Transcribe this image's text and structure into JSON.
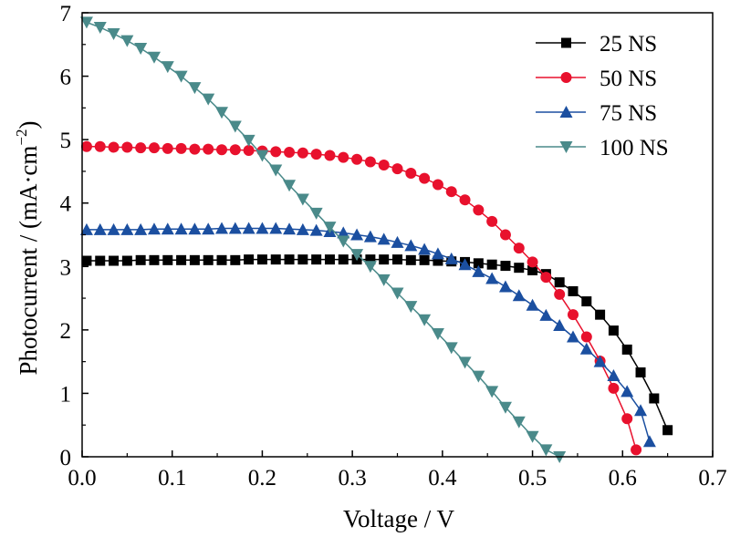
{
  "chart_data": {
    "type": "line",
    "xlabel": "Voltage / V",
    "ylabel_main": "Photocurrent / (mA·cm",
    "ylabel_sup": "−2",
    "ylabel_close": ")",
    "xlim": [
      0.0,
      0.7
    ],
    "ylim": [
      0,
      7
    ],
    "x_ticks": [
      0.0,
      0.1,
      0.2,
      0.3,
      0.4,
      0.5,
      0.6,
      0.7
    ],
    "x_tick_labels": [
      "0.0",
      "0.1",
      "0.2",
      "0.3",
      "0.4",
      "0.5",
      "0.6",
      "0.7"
    ],
    "y_ticks": [
      0,
      1,
      2,
      3,
      4,
      5,
      6,
      7
    ],
    "y_tick_labels": [
      "0",
      "1",
      "2",
      "3",
      "4",
      "5",
      "6",
      "7"
    ],
    "grid": false,
    "legend_position": "top-right",
    "series": [
      {
        "name": "25 NS",
        "color": "#000000",
        "marker": "square",
        "x": [
          0.005,
          0.02,
          0.035,
          0.05,
          0.065,
          0.08,
          0.095,
          0.11,
          0.125,
          0.14,
          0.155,
          0.17,
          0.185,
          0.2,
          0.215,
          0.23,
          0.245,
          0.26,
          0.275,
          0.29,
          0.305,
          0.32,
          0.335,
          0.35,
          0.365,
          0.38,
          0.395,
          0.41,
          0.425,
          0.44,
          0.455,
          0.47,
          0.485,
          0.5,
          0.515,
          0.53,
          0.545,
          0.56,
          0.575,
          0.59,
          0.605,
          0.62,
          0.635,
          0.65
        ],
        "y": [
          3.09,
          3.09,
          3.09,
          3.09,
          3.1,
          3.1,
          3.1,
          3.1,
          3.1,
          3.1,
          3.1,
          3.1,
          3.11,
          3.11,
          3.11,
          3.11,
          3.11,
          3.11,
          3.11,
          3.11,
          3.11,
          3.11,
          3.11,
          3.11,
          3.1,
          3.1,
          3.09,
          3.08,
          3.07,
          3.05,
          3.03,
          3.01,
          2.98,
          2.94,
          2.88,
          2.75,
          2.61,
          2.45,
          2.24,
          1.99,
          1.69,
          1.33,
          0.92,
          0.42
        ]
      },
      {
        "name": "50 NS",
        "color": "#e8112d",
        "marker": "circle",
        "x": [
          0.005,
          0.02,
          0.035,
          0.05,
          0.065,
          0.08,
          0.095,
          0.11,
          0.125,
          0.14,
          0.155,
          0.17,
          0.185,
          0.2,
          0.215,
          0.23,
          0.245,
          0.26,
          0.275,
          0.29,
          0.305,
          0.32,
          0.335,
          0.35,
          0.365,
          0.38,
          0.395,
          0.41,
          0.425,
          0.44,
          0.455,
          0.47,
          0.485,
          0.5,
          0.515,
          0.53,
          0.545,
          0.56,
          0.575,
          0.59,
          0.605,
          0.615
        ],
        "y": [
          4.89,
          4.89,
          4.88,
          4.88,
          4.87,
          4.87,
          4.86,
          4.86,
          4.85,
          4.85,
          4.84,
          4.84,
          4.83,
          4.82,
          4.81,
          4.8,
          4.79,
          4.77,
          4.75,
          4.72,
          4.69,
          4.65,
          4.6,
          4.54,
          4.47,
          4.39,
          4.29,
          4.18,
          4.05,
          3.89,
          3.71,
          3.5,
          3.29,
          3.07,
          2.83,
          2.56,
          2.24,
          1.89,
          1.51,
          1.08,
          0.6,
          0.11
        ]
      },
      {
        "name": "75 NS",
        "color": "#1b4fa0",
        "marker": "triangle-up",
        "x": [
          0.005,
          0.02,
          0.035,
          0.05,
          0.065,
          0.08,
          0.095,
          0.11,
          0.125,
          0.14,
          0.155,
          0.17,
          0.185,
          0.2,
          0.215,
          0.23,
          0.245,
          0.26,
          0.275,
          0.29,
          0.305,
          0.32,
          0.335,
          0.35,
          0.365,
          0.38,
          0.395,
          0.41,
          0.425,
          0.44,
          0.455,
          0.47,
          0.485,
          0.5,
          0.515,
          0.53,
          0.545,
          0.56,
          0.575,
          0.59,
          0.605,
          0.62,
          0.63
        ],
        "y": [
          3.58,
          3.58,
          3.58,
          3.58,
          3.58,
          3.59,
          3.59,
          3.59,
          3.59,
          3.59,
          3.6,
          3.6,
          3.6,
          3.6,
          3.6,
          3.59,
          3.58,
          3.57,
          3.55,
          3.53,
          3.5,
          3.47,
          3.43,
          3.38,
          3.33,
          3.27,
          3.2,
          3.12,
          3.03,
          2.92,
          2.81,
          2.68,
          2.54,
          2.39,
          2.23,
          2.07,
          1.89,
          1.7,
          1.5,
          1.28,
          1.03,
          0.73,
          0.24
        ]
      },
      {
        "name": "100 NS",
        "color": "#4a8a8a",
        "marker": "triangle-down",
        "x": [
          0.005,
          0.02,
          0.035,
          0.05,
          0.065,
          0.08,
          0.095,
          0.11,
          0.125,
          0.14,
          0.155,
          0.17,
          0.185,
          0.2,
          0.215,
          0.23,
          0.245,
          0.26,
          0.275,
          0.29,
          0.305,
          0.32,
          0.335,
          0.35,
          0.365,
          0.38,
          0.395,
          0.41,
          0.425,
          0.44,
          0.455,
          0.47,
          0.485,
          0.5,
          0.515,
          0.53
        ],
        "y": [
          6.85,
          6.77,
          6.67,
          6.56,
          6.44,
          6.3,
          6.15,
          6.0,
          5.82,
          5.64,
          5.43,
          5.21,
          4.99,
          4.75,
          4.52,
          4.28,
          4.06,
          3.84,
          3.62,
          3.4,
          3.19,
          3.0,
          2.79,
          2.58,
          2.37,
          2.16,
          1.94,
          1.72,
          1.49,
          1.27,
          1.03,
          0.78,
          0.55,
          0.32,
          0.11,
          0.0
        ]
      }
    ]
  }
}
